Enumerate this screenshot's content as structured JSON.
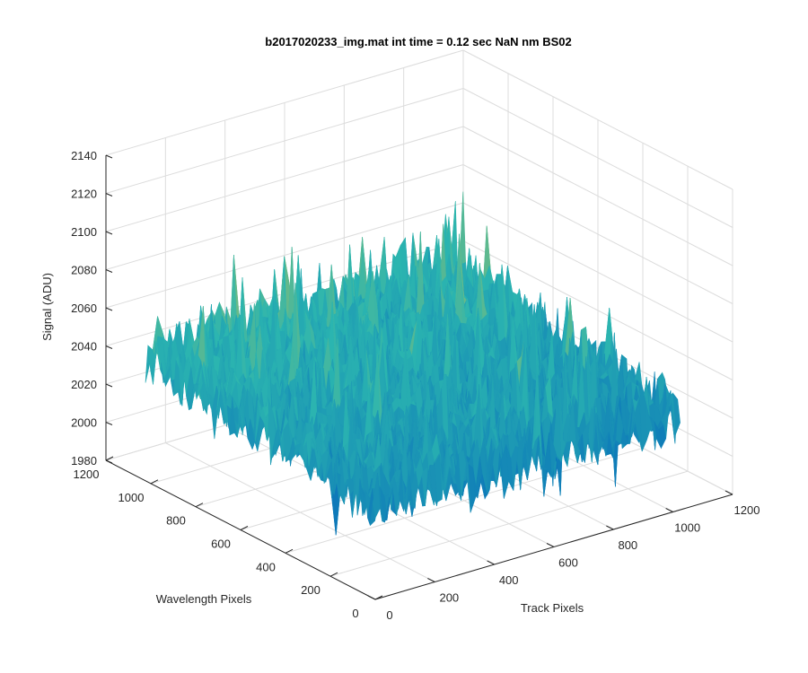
{
  "chart_data": {
    "type": "surface",
    "title": "b2017020233_img.mat int time = 0.12 sec  NaN nm BS02",
    "xlabel": "Track Pixels",
    "ylabel": "Wavelength Pixels",
    "zlabel": "Signal (ADU)",
    "xlim": [
      0,
      1200
    ],
    "ylim": [
      0,
      1200
    ],
    "zlim": [
      1980,
      2140
    ],
    "x_ticks": [
      "0",
      "200",
      "400",
      "600",
      "800",
      "1000",
      "1200"
    ],
    "y_ticks": [
      "0",
      "200",
      "400",
      "600",
      "800",
      "1000",
      "1200"
    ],
    "z_ticks": [
      "1980",
      "2000",
      "2020",
      "2040",
      "2060",
      "2080",
      "2100",
      "2120",
      "2140"
    ],
    "grid": true,
    "colormap": "parula",
    "surface_extent": {
      "x": [
        0,
        1024
      ],
      "y": [
        0,
        1024
      ]
    },
    "signal_level_estimate": {
      "low_wavelength_edge_mean": 2030,
      "high_wavelength_edge_mean": 2045,
      "peak_max": 2125,
      "min": 1985
    },
    "colors": {
      "low": "#0a72ba",
      "mid": "#2bb5b0",
      "high": "#f2c52c"
    }
  }
}
